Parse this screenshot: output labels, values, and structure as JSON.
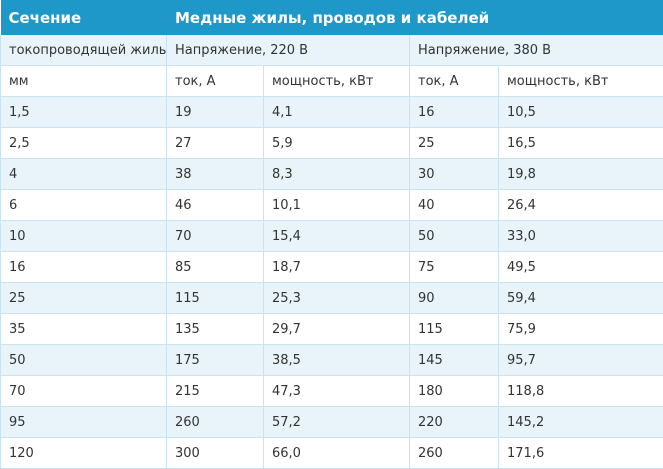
{
  "title": {
    "left": "Сечение",
    "right": "Медные жилы, проводов и кабелей"
  },
  "subheader": {
    "col0": "токопроводящей жилы,",
    "voltage_220": "Напряжение, 220 В",
    "voltage_380": "Напряжение, 380 В"
  },
  "units": {
    "section": "мм",
    "current_220": "ток, А",
    "power_220": "мощность, кВт",
    "current_380": "ток, А",
    "power_380": "мощность, кВт"
  },
  "rows": [
    {
      "section": "1,5",
      "current_220": "19",
      "power_220": "4,1",
      "current_380": "16",
      "power_380": "10,5"
    },
    {
      "section": "2,5",
      "current_220": "27",
      "power_220": "5,9",
      "current_380": "25",
      "power_380": "16,5"
    },
    {
      "section": "4",
      "current_220": "38",
      "power_220": "8,3",
      "current_380": "30",
      "power_380": "19,8"
    },
    {
      "section": "6",
      "current_220": "46",
      "power_220": "10,1",
      "current_380": "40",
      "power_380": "26,4"
    },
    {
      "section": "10",
      "current_220": "70",
      "power_220": "15,4",
      "current_380": "50",
      "power_380": "33,0"
    },
    {
      "section": "16",
      "current_220": "85",
      "power_220": "18,7",
      "current_380": "75",
      "power_380": "49,5"
    },
    {
      "section": "25",
      "current_220": "115",
      "power_220": "25,3",
      "current_380": "90",
      "power_380": "59,4"
    },
    {
      "section": "35",
      "current_220": "135",
      "power_220": "29,7",
      "current_380": "115",
      "power_380": "75,9"
    },
    {
      "section": "50",
      "current_220": "175",
      "power_220": "38,5",
      "current_380": "145",
      "power_380": "95,7"
    },
    {
      "section": "70",
      "current_220": "215",
      "power_220": "47,3",
      "current_380": "180",
      "power_380": "118,8"
    },
    {
      "section": "95",
      "current_220": "260",
      "power_220": "57,2",
      "current_380": "220",
      "power_380": "145,2"
    },
    {
      "section": "120",
      "current_220": "300",
      "power_220": "66,0",
      "current_380": "260",
      "power_380": "171,6"
    }
  ],
  "colors": {
    "header_bg": "#1e98c9",
    "alt_row_bg": "#e9f4fa",
    "border": "#c7e4f0"
  }
}
